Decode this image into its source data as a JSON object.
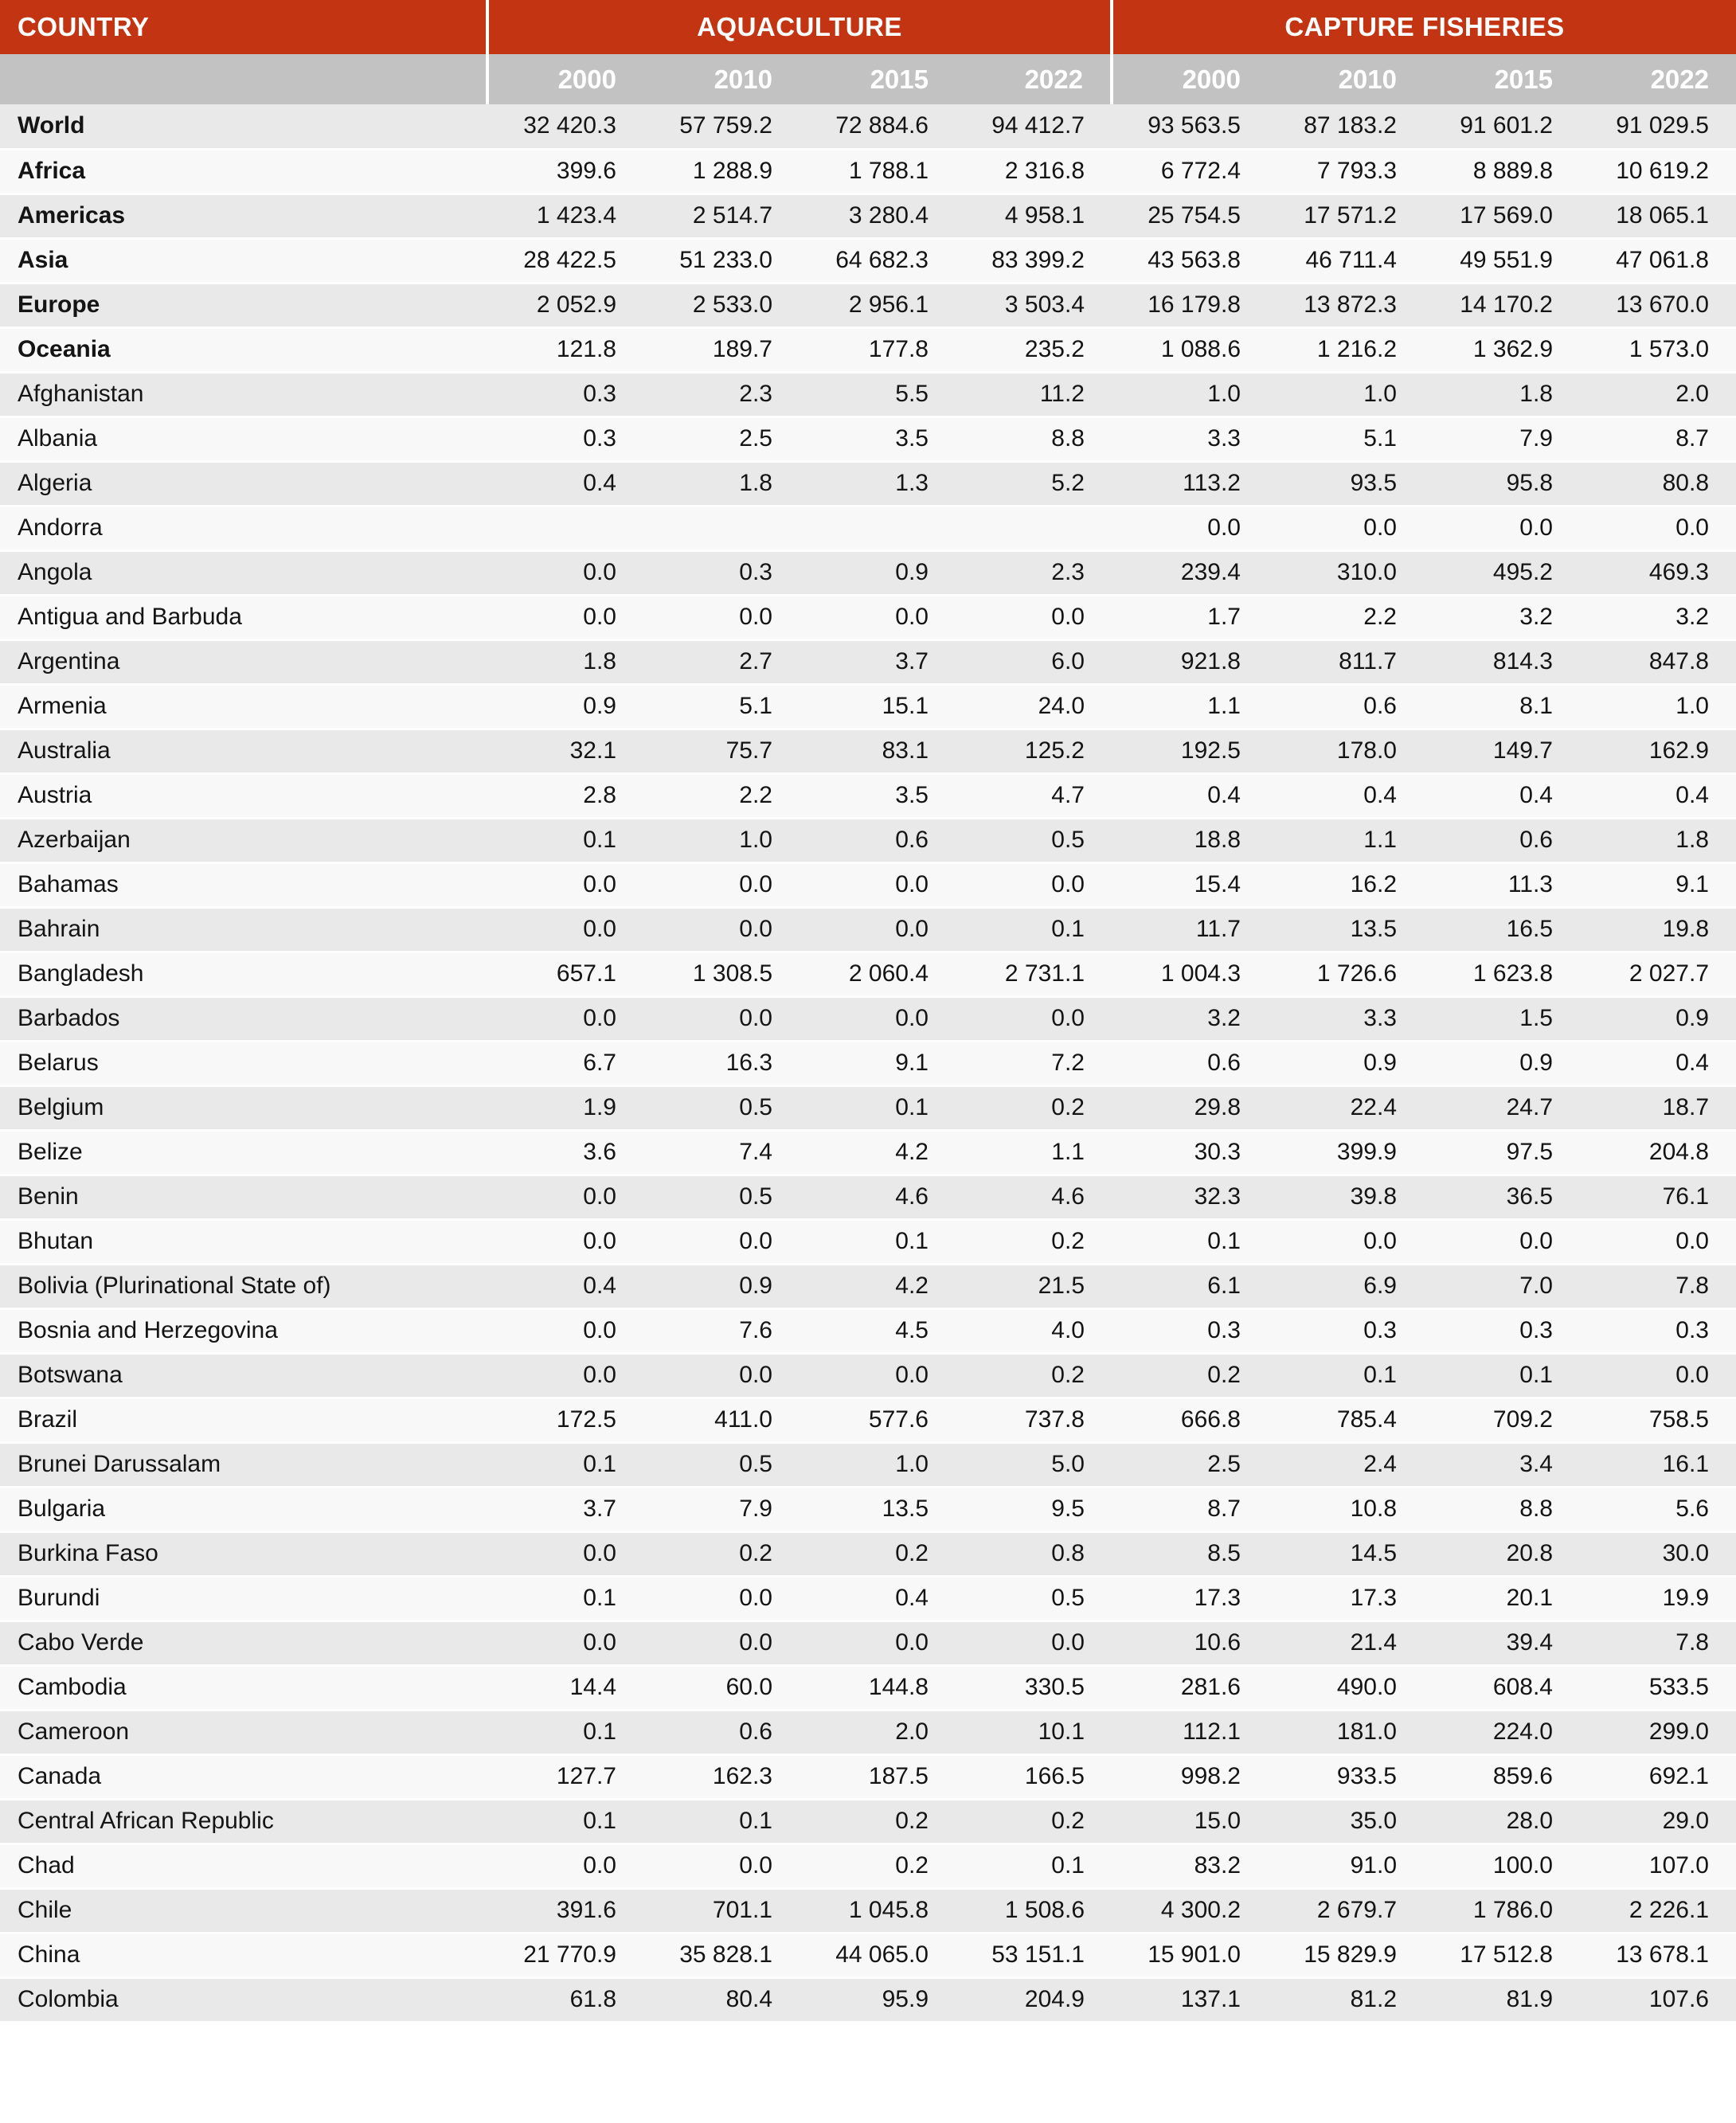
{
  "colors": {
    "header_red": "#c23412",
    "year_band_gray": "#c2c2c2",
    "row_stripe_gray": "#e9e9e9",
    "row_stripe_light": "#f8f8f8",
    "header_text": "#ffffff",
    "body_text": "#141414"
  },
  "table": {
    "country_header": "COUNTRY",
    "groups": [
      {
        "label": "AQUACULTURE",
        "years": [
          "2000",
          "2010",
          "2015",
          "2022"
        ]
      },
      {
        "label": "CAPTURE FISHERIES",
        "years": [
          "2000",
          "2010",
          "2015",
          "2022"
        ]
      }
    ],
    "rows": [
      {
        "country": "World",
        "bold": true,
        "values": [
          "32 420.3",
          "57 759.2",
          "72 884.6",
          "94 412.7",
          "93 563.5",
          "87 183.2",
          "91 601.2",
          "91 029.5"
        ]
      },
      {
        "country": "Africa",
        "bold": true,
        "values": [
          "399.6",
          "1 288.9",
          "1 788.1",
          "2 316.8",
          "6 772.4",
          "7 793.3",
          "8 889.8",
          "10 619.2"
        ]
      },
      {
        "country": "Americas",
        "bold": true,
        "values": [
          "1 423.4",
          "2 514.7",
          "3 280.4",
          "4 958.1",
          "25 754.5",
          "17 571.2",
          "17 569.0",
          "18 065.1"
        ]
      },
      {
        "country": "Asia",
        "bold": true,
        "values": [
          "28 422.5",
          "51 233.0",
          "64 682.3",
          "83 399.2",
          "43 563.8",
          "46 711.4",
          "49 551.9",
          "47 061.8"
        ]
      },
      {
        "country": "Europe",
        "bold": true,
        "values": [
          "2 052.9",
          "2 533.0",
          "2 956.1",
          "3 503.4",
          "16 179.8",
          "13 872.3",
          "14 170.2",
          "13 670.0"
        ]
      },
      {
        "country": "Oceania",
        "bold": true,
        "values": [
          "121.8",
          "189.7",
          "177.8",
          "235.2",
          "1 088.6",
          "1 216.2",
          "1 362.9",
          "1 573.0"
        ]
      },
      {
        "country": "Afghanistan",
        "bold": false,
        "values": [
          "0.3",
          "2.3",
          "5.5",
          "11.2",
          "1.0",
          "1.0",
          "1.8",
          "2.0"
        ]
      },
      {
        "country": "Albania",
        "bold": false,
        "values": [
          "0.3",
          "2.5",
          "3.5",
          "8.8",
          "3.3",
          "5.1",
          "7.9",
          "8.7"
        ]
      },
      {
        "country": "Algeria",
        "bold": false,
        "values": [
          "0.4",
          "1.8",
          "1.3",
          "5.2",
          "113.2",
          "93.5",
          "95.8",
          "80.8"
        ]
      },
      {
        "country": "Andorra",
        "bold": false,
        "values": [
          "",
          "",
          "",
          "",
          "0.0",
          "0.0",
          "0.0",
          "0.0"
        ]
      },
      {
        "country": "Angola",
        "bold": false,
        "values": [
          "0.0",
          "0.3",
          "0.9",
          "2.3",
          "239.4",
          "310.0",
          "495.2",
          "469.3"
        ]
      },
      {
        "country": "Antigua and Barbuda",
        "bold": false,
        "values": [
          "0.0",
          "0.0",
          "0.0",
          "0.0",
          "1.7",
          "2.2",
          "3.2",
          "3.2"
        ]
      },
      {
        "country": "Argentina",
        "bold": false,
        "values": [
          "1.8",
          "2.7",
          "3.7",
          "6.0",
          "921.8",
          "811.7",
          "814.3",
          "847.8"
        ]
      },
      {
        "country": "Armenia",
        "bold": false,
        "values": [
          "0.9",
          "5.1",
          "15.1",
          "24.0",
          "1.1",
          "0.6",
          "8.1",
          "1.0"
        ]
      },
      {
        "country": "Australia",
        "bold": false,
        "values": [
          "32.1",
          "75.7",
          "83.1",
          "125.2",
          "192.5",
          "178.0",
          "149.7",
          "162.9"
        ]
      },
      {
        "country": "Austria",
        "bold": false,
        "values": [
          "2.8",
          "2.2",
          "3.5",
          "4.7",
          "0.4",
          "0.4",
          "0.4",
          "0.4"
        ]
      },
      {
        "country": "Azerbaijan",
        "bold": false,
        "values": [
          "0.1",
          "1.0",
          "0.6",
          "0.5",
          "18.8",
          "1.1",
          "0.6",
          "1.8"
        ]
      },
      {
        "country": "Bahamas",
        "bold": false,
        "values": [
          "0.0",
          "0.0",
          "0.0",
          "0.0",
          "15.4",
          "16.2",
          "11.3",
          "9.1"
        ]
      },
      {
        "country": "Bahrain",
        "bold": false,
        "values": [
          "0.0",
          "0.0",
          "0.0",
          "0.1",
          "11.7",
          "13.5",
          "16.5",
          "19.8"
        ]
      },
      {
        "country": "Bangladesh",
        "bold": false,
        "values": [
          "657.1",
          "1 308.5",
          "2 060.4",
          "2 731.1",
          "1 004.3",
          "1 726.6",
          "1 623.8",
          "2 027.7"
        ]
      },
      {
        "country": "Barbados",
        "bold": false,
        "values": [
          "0.0",
          "0.0",
          "0.0",
          "0.0",
          "3.2",
          "3.3",
          "1.5",
          "0.9"
        ]
      },
      {
        "country": "Belarus",
        "bold": false,
        "values": [
          "6.7",
          "16.3",
          "9.1",
          "7.2",
          "0.6",
          "0.9",
          "0.9",
          "0.4"
        ]
      },
      {
        "country": "Belgium",
        "bold": false,
        "values": [
          "1.9",
          "0.5",
          "0.1",
          "0.2",
          "29.8",
          "22.4",
          "24.7",
          "18.7"
        ]
      },
      {
        "country": "Belize",
        "bold": false,
        "values": [
          "3.6",
          "7.4",
          "4.2",
          "1.1",
          "30.3",
          "399.9",
          "97.5",
          "204.8"
        ]
      },
      {
        "country": "Benin",
        "bold": false,
        "values": [
          "0.0",
          "0.5",
          "4.6",
          "4.6",
          "32.3",
          "39.8",
          "36.5",
          "76.1"
        ]
      },
      {
        "country": "Bhutan",
        "bold": false,
        "values": [
          "0.0",
          "0.0",
          "0.1",
          "0.2",
          "0.1",
          "0.0",
          "0.0",
          "0.0"
        ]
      },
      {
        "country": "Bolivia (Plurinational State of)",
        "bold": false,
        "values": [
          "0.4",
          "0.9",
          "4.2",
          "21.5",
          "6.1",
          "6.9",
          "7.0",
          "7.8"
        ]
      },
      {
        "country": "Bosnia and Herzegovina",
        "bold": false,
        "values": [
          "0.0",
          "7.6",
          "4.5",
          "4.0",
          "0.3",
          "0.3",
          "0.3",
          "0.3"
        ]
      },
      {
        "country": "Botswana",
        "bold": false,
        "values": [
          "0.0",
          "0.0",
          "0.0",
          "0.2",
          "0.2",
          "0.1",
          "0.1",
          "0.0"
        ]
      },
      {
        "country": "Brazil",
        "bold": false,
        "values": [
          "172.5",
          "411.0",
          "577.6",
          "737.8",
          "666.8",
          "785.4",
          "709.2",
          "758.5"
        ]
      },
      {
        "country": "Brunei Darussalam",
        "bold": false,
        "values": [
          "0.1",
          "0.5",
          "1.0",
          "5.0",
          "2.5",
          "2.4",
          "3.4",
          "16.1"
        ]
      },
      {
        "country": "Bulgaria",
        "bold": false,
        "values": [
          "3.7",
          "7.9",
          "13.5",
          "9.5",
          "8.7",
          "10.8",
          "8.8",
          "5.6"
        ]
      },
      {
        "country": "Burkina Faso",
        "bold": false,
        "values": [
          "0.0",
          "0.2",
          "0.2",
          "0.8",
          "8.5",
          "14.5",
          "20.8",
          "30.0"
        ]
      },
      {
        "country": "Burundi",
        "bold": false,
        "values": [
          "0.1",
          "0.0",
          "0.4",
          "0.5",
          "17.3",
          "17.3",
          "20.1",
          "19.9"
        ]
      },
      {
        "country": "Cabo Verde",
        "bold": false,
        "values": [
          "0.0",
          "0.0",
          "0.0",
          "0.0",
          "10.6",
          "21.4",
          "39.4",
          "7.8"
        ]
      },
      {
        "country": "Cambodia",
        "bold": false,
        "values": [
          "14.4",
          "60.0",
          "144.8",
          "330.5",
          "281.6",
          "490.0",
          "608.4",
          "533.5"
        ]
      },
      {
        "country": "Cameroon",
        "bold": false,
        "values": [
          "0.1",
          "0.6",
          "2.0",
          "10.1",
          "112.1",
          "181.0",
          "224.0",
          "299.0"
        ]
      },
      {
        "country": "Canada",
        "bold": false,
        "values": [
          "127.7",
          "162.3",
          "187.5",
          "166.5",
          "998.2",
          "933.5",
          "859.6",
          "692.1"
        ]
      },
      {
        "country": "Central African Republic",
        "bold": false,
        "values": [
          "0.1",
          "0.1",
          "0.2",
          "0.2",
          "15.0",
          "35.0",
          "28.0",
          "29.0"
        ]
      },
      {
        "country": "Chad",
        "bold": false,
        "values": [
          "0.0",
          "0.0",
          "0.2",
          "0.1",
          "83.2",
          "91.0",
          "100.0",
          "107.0"
        ]
      },
      {
        "country": "Chile",
        "bold": false,
        "values": [
          "391.6",
          "701.1",
          "1 045.8",
          "1 508.6",
          "4 300.2",
          "2 679.7",
          "1 786.0",
          "2 226.1"
        ]
      },
      {
        "country": "China",
        "bold": false,
        "values": [
          "21 770.9",
          "35 828.1",
          "44 065.0",
          "53 151.1",
          "15 901.0",
          "15 829.9",
          "17 512.8",
          "13 678.1"
        ]
      },
      {
        "country": "Colombia",
        "bold": false,
        "values": [
          "61.8",
          "80.4",
          "95.9",
          "204.9",
          "137.1",
          "81.2",
          "81.9",
          "107.6"
        ]
      }
    ]
  }
}
